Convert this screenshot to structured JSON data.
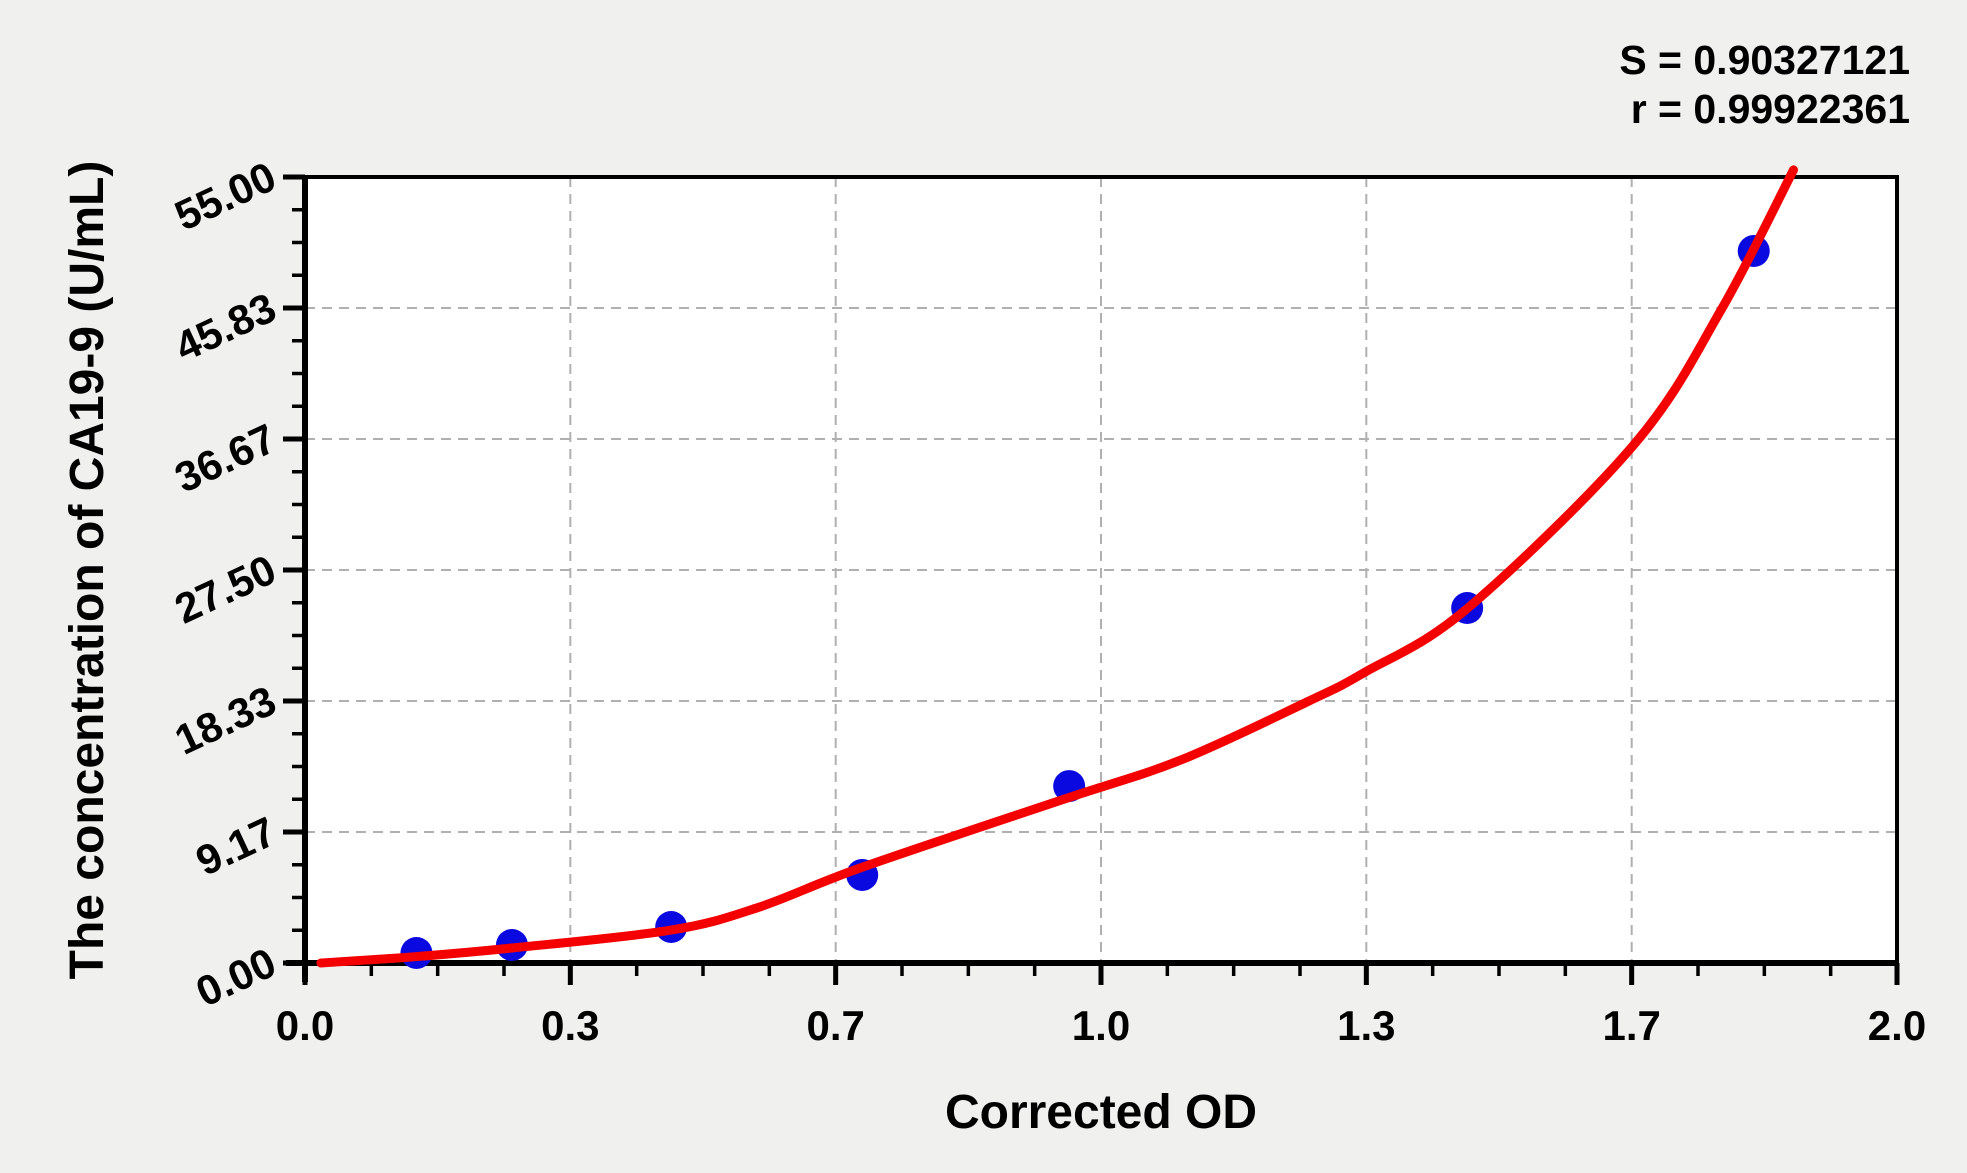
{
  "chart_data": {
    "type": "scatter",
    "title": "",
    "xlabel": "Corrected OD",
    "ylabel": "The concentration of CA19-9 (U/mL)",
    "xlim": [
      0,
      2
    ],
    "ylim": [
      0,
      55
    ],
    "x_tick_labels": [
      "0.0",
      "0.3",
      "0.7",
      "1.0",
      "1.3",
      "1.7",
      "2.0"
    ],
    "x_tick_values": [
      0,
      0.3333,
      0.6667,
      1.0,
      1.3333,
      1.6667,
      2.0
    ],
    "y_tick_labels": [
      "0.00",
      "9.17",
      "18.33",
      "27.50",
      "36.67",
      "45.83",
      "55.00"
    ],
    "y_tick_values": [
      0,
      9.17,
      18.33,
      27.5,
      36.67,
      45.83,
      55
    ],
    "minor_ticks_per_major": 4,
    "grid": "dashed, interior major lines only",
    "legend_position": "none",
    "annotations": [
      "S = 0.90327121",
      "r = 0.99922361"
    ],
    "series": [
      {
        "name": "standard-points",
        "type": "scatter",
        "color": "#0a0ae0",
        "points": [
          [
            0.14,
            0.7
          ],
          [
            0.26,
            1.26
          ],
          [
            0.46,
            2.52
          ],
          [
            0.7,
            6.16
          ],
          [
            0.96,
            12.38
          ],
          [
            1.46,
            24.84
          ],
          [
            1.82,
            49.82
          ]
        ]
      },
      {
        "name": "fitted-curve",
        "type": "line",
        "color": "#f40000",
        "points": [
          [
            0.02,
            0.0
          ],
          [
            0.14,
            0.45
          ],
          [
            0.26,
            1.05
          ],
          [
            0.46,
            2.3
          ],
          [
            0.57,
            3.9
          ],
          [
            0.7,
            6.7
          ],
          [
            0.95,
            11.4
          ],
          [
            1.1,
            14.2
          ],
          [
            1.26,
            18.3
          ],
          [
            1.33,
            20.3
          ],
          [
            1.46,
            24.8
          ],
          [
            1.67,
            36.3
          ],
          [
            1.78,
            45.8
          ],
          [
            1.87,
            55.5
          ]
        ]
      }
    ],
    "colors": {
      "page_bg": "#f0f0ef",
      "plot_bg": "#ffffff",
      "axis": "#000000",
      "grid": "#b0b0b0",
      "point": "#0a0ae0",
      "curve": "#f40000"
    }
  }
}
